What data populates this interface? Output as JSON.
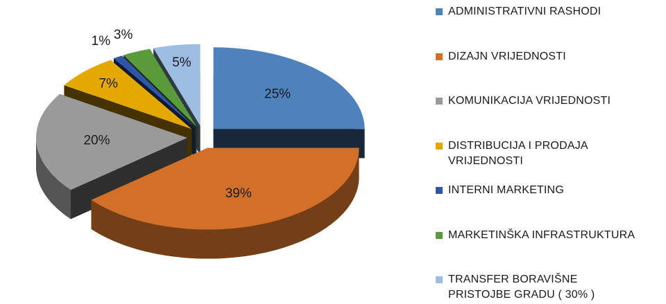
{
  "chart_data": {
    "type": "pie",
    "categories": [
      "ADMINISTRATIVNI RASHODI",
      "DIZAJN VRIJEDNOSTI",
      "KOMUNIKACIJA VRIJEDNOSTI",
      "DISTRIBUCIJA I PRODAJA VRIJEDNOSTI",
      "INTERNI MARKETING",
      "MARKETINŠKA INFRASTRUKTURA",
      "TRANSFER BORAVIŠNE PRISTOJBE GRADU ( 30% )"
    ],
    "values": [
      25,
      39,
      20,
      7,
      1,
      3,
      5
    ],
    "value_labels": [
      "25%",
      "39%",
      "20%",
      "7%",
      "1%",
      "3%",
      "5%"
    ],
    "colors": [
      "#4f81bd",
      "#d2702a",
      "#9a9a9a",
      "#e3a900",
      "#2e55a6",
      "#5b9a3b",
      "#9dbde3"
    ],
    "legend": "right"
  }
}
